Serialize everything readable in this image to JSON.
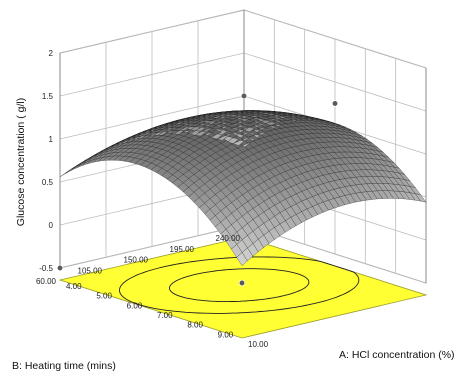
{
  "chart_data": {
    "type": "surface3d",
    "title": "",
    "zlabel": "Glucose concentration ( g/l)",
    "xlabel": "A: HCl concentration (%)",
    "ylabel": "B:  Heating time (mins)",
    "z_ticks": [
      "-0.5",
      "0",
      "0.5",
      "1",
      "1.5",
      "2"
    ],
    "x_ticks": [
      "4.00",
      "5.00",
      "6.00",
      "7.00",
      "8.00",
      "9.00",
      "10.00"
    ],
    "y_ticks": [
      "60.00",
      "105.00",
      "150.00",
      "195.00",
      "240.00"
    ],
    "xlim": [
      4,
      10
    ],
    "ylim": [
      60,
      240
    ],
    "zlim": [
      -0.5,
      2
    ],
    "grid": true,
    "floor_color": "#ffff33",
    "surface": {
      "model": "quadratic",
      "x_center": 7,
      "y_center": 150,
      "a0": 1.3,
      "a_x": -0.08,
      "a_y": 0.02,
      "a_xx": -0.6,
      "a_yy": -0.3,
      "a_xy": 0.1
    },
    "design_points": [
      {
        "x": 4,
        "y": 240,
        "z": 1.0
      },
      {
        "x": 7,
        "y": 240,
        "z": 1.25
      },
      {
        "x": 10,
        "y": 60,
        "z": 0.0
      },
      {
        "x": 4,
        "y": 60,
        "z": -0.5
      }
    ],
    "contour_levels": [
      1.0,
      1.2
    ]
  }
}
